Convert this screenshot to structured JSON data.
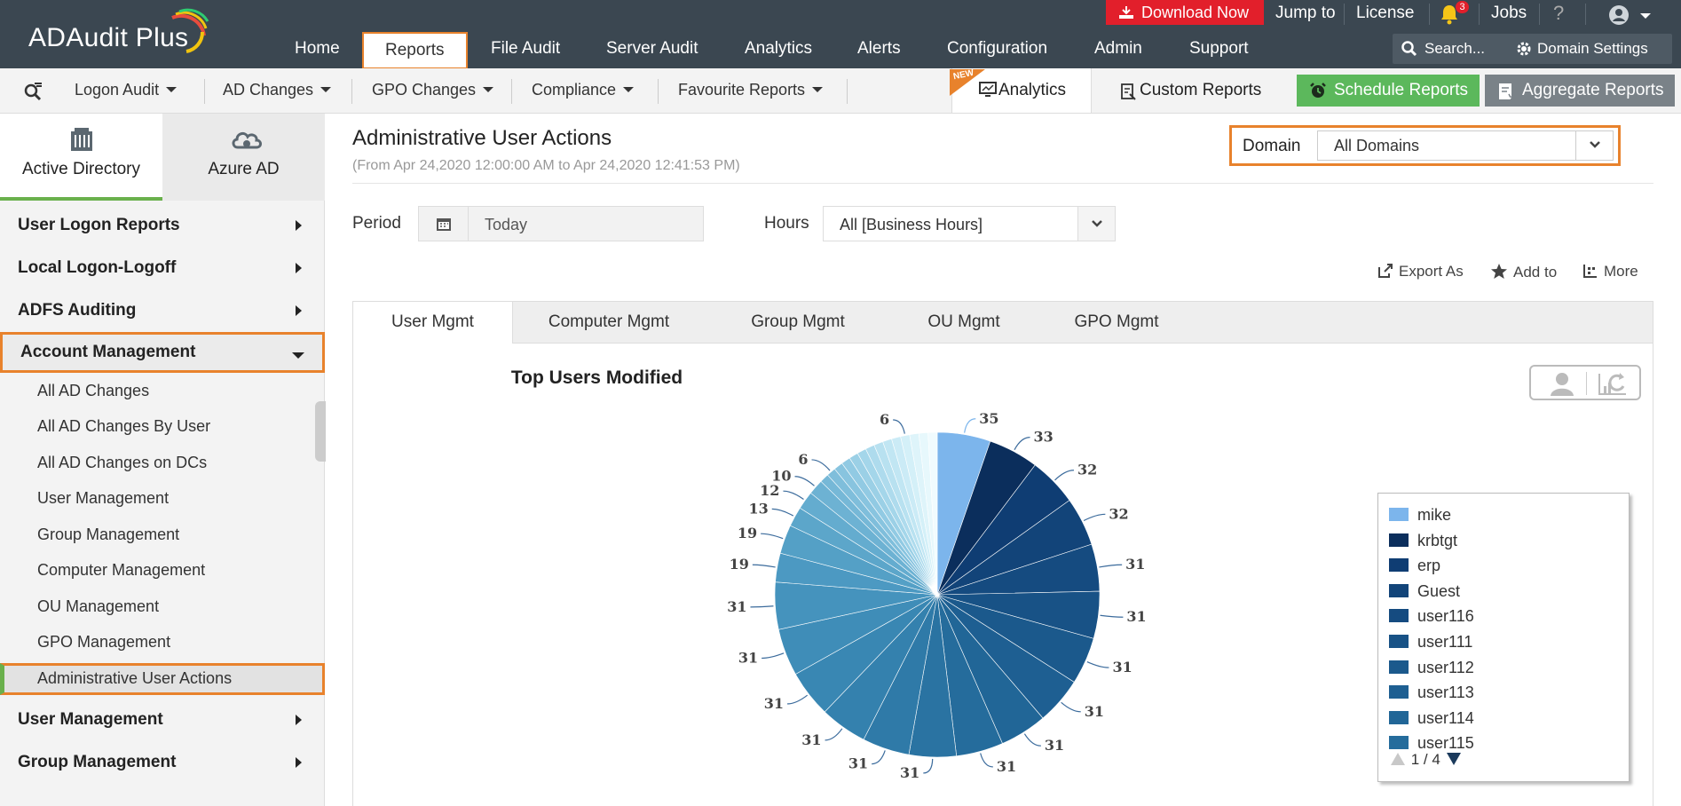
{
  "app": {
    "logo": "ADAudit Plus"
  },
  "header": {
    "nav": [
      "Home",
      "Reports",
      "File Audit",
      "Server Audit",
      "Analytics",
      "Alerts",
      "Configuration",
      "Admin",
      "Support"
    ],
    "download_label": "Download Now",
    "jump_to": "Jump to",
    "license": "License",
    "notifications_count": "3",
    "jobs": "Jobs",
    "help": "?",
    "search_label": "Search...",
    "domain_settings": "Domain Settings"
  },
  "subnav": {
    "menus": [
      "Logon Audit",
      "AD Changes",
      "GPO Changes",
      "Compliance",
      "Favourite Reports"
    ],
    "new_badge": "NEW",
    "analytics": "Analytics",
    "custom_reports": "Custom Reports",
    "schedule_reports": "Schedule Reports",
    "aggregate_reports": "Aggregate Reports"
  },
  "sidebar": {
    "tabs": [
      "Active Directory",
      "Azure AD"
    ],
    "groups_top": [
      "User Logon Reports",
      "Local Logon-Logoff",
      "ADFS Auditing"
    ],
    "selected_group": "Account Management",
    "items": [
      "All AD Changes",
      "All AD Changes By User",
      "All AD Changes on DCs",
      "User Management",
      "Group Management",
      "Computer Management",
      "OU Management",
      "GPO Management",
      "Administrative User Actions"
    ],
    "groups_bottom": [
      "User Management",
      "Group Management"
    ]
  },
  "main": {
    "title": "Administrative User Actions",
    "subtitle": "(From Apr 24,2020 12:00:00 AM to Apr 24,2020 12:41:53 PM)",
    "domain_label": "Domain",
    "domain_value": "All Domains",
    "period_label": "Period",
    "period_value": "Today",
    "hours_label": "Hours",
    "hours_value": "All [Business Hours]",
    "actions": [
      "Export As",
      "Add to",
      "More"
    ],
    "tabs": [
      "User Mgmt",
      "Computer Mgmt",
      "Group Mgmt",
      "OU Mgmt",
      "GPO Mgmt"
    ]
  },
  "legend_pager": "1 / 4",
  "chart_data": {
    "type": "pie",
    "title": "Top Users Modified",
    "legend_visible": [
      "mike",
      "krbtgt",
      "erp",
      "Guest",
      "user116",
      "user111",
      "user112",
      "user113",
      "user114",
      "user115"
    ],
    "values": [
      35,
      33,
      32,
      32,
      31,
      31,
      31,
      31,
      31,
      31,
      31,
      31,
      31,
      31,
      31,
      31,
      19,
      19,
      13,
      12,
      10,
      6,
      6,
      6,
      6,
      6,
      6,
      6,
      6,
      6,
      6,
      6,
      6,
      6,
      6
    ],
    "colors": [
      "#7cb5ec",
      "#0b2e5c",
      "#0f3d73",
      "#124479",
      "#154b80",
      "#185286",
      "#1b598c",
      "#1e5f92",
      "#216697",
      "#256c9c",
      "#2a73a2",
      "#2f7aa8",
      "#3481ae",
      "#3987b3",
      "#3f8db8",
      "#4593bd",
      "#4c99c2",
      "#54a0c6",
      "#5ca6ca",
      "#64accf",
      "#6db2d3",
      "#76b8d7",
      "#7fbedb",
      "#88c4df",
      "#91cae3",
      "#9bd0e6",
      "#a4d6ea",
      "#aedbed",
      "#b8e1f0",
      "#c1e6f3",
      "#cbebf6",
      "#d4f0f8",
      "#def4fa",
      "#e7f8fc",
      "#f0fbfe"
    ],
    "labeled_slices": [
      {
        "index": 0,
        "label": "35"
      },
      {
        "index": 1,
        "label": "33"
      },
      {
        "index": 2,
        "label": "32"
      },
      {
        "index": 3,
        "label": "32"
      },
      {
        "index": 4,
        "label": "31"
      },
      {
        "index": 5,
        "label": "31"
      },
      {
        "index": 6,
        "label": "31"
      },
      {
        "index": 7,
        "label": "31"
      },
      {
        "index": 8,
        "label": "31"
      },
      {
        "index": 9,
        "label": "31"
      },
      {
        "index": 10,
        "label": "31"
      },
      {
        "index": 11,
        "label": "31"
      },
      {
        "index": 12,
        "label": "31"
      },
      {
        "index": 13,
        "label": "31"
      },
      {
        "index": 14,
        "label": "31"
      },
      {
        "index": 15,
        "label": "31"
      },
      {
        "index": 16,
        "label": "19"
      },
      {
        "index": 17,
        "label": "19"
      },
      {
        "index": 18,
        "label": "13"
      },
      {
        "index": 19,
        "label": "12"
      },
      {
        "index": 20,
        "label": "10"
      },
      {
        "index": 22,
        "label": "6"
      },
      {
        "index": 31,
        "label": "6"
      }
    ]
  }
}
